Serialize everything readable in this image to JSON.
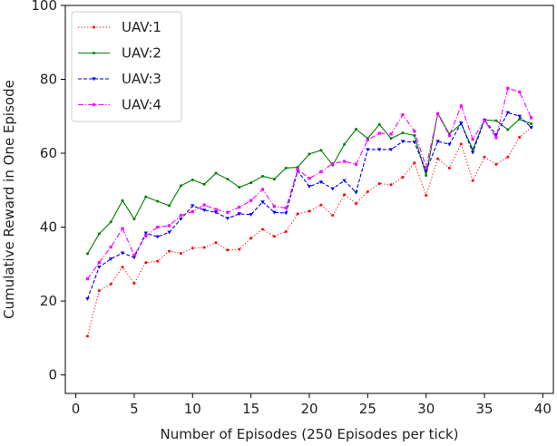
{
  "chart_data": {
    "type": "line",
    "title": "",
    "xlabel": "Number of Episodes (250 Episodes per tick)",
    "ylabel": "Cumulative Reward in One Episode",
    "xlim": [
      -0.9,
      40.9
    ],
    "ylim": [
      -5,
      100
    ],
    "xticks": [
      0,
      5,
      10,
      15,
      20,
      25,
      30,
      35,
      40
    ],
    "yticks": [
      0,
      20,
      40,
      60,
      80,
      100
    ],
    "grid": false,
    "legend_position": "top-left",
    "x": [
      1,
      2,
      3,
      4,
      5,
      6,
      7,
      8,
      9,
      10,
      11,
      12,
      13,
      14,
      15,
      16,
      17,
      18,
      19,
      20,
      21,
      22,
      23,
      24,
      25,
      26,
      27,
      28,
      29,
      30,
      31,
      32,
      33,
      34,
      35,
      36,
      37,
      38,
      39
    ],
    "series": [
      {
        "name": "UAV:1",
        "color": "#ff0000",
        "dash": "dotted",
        "marker": "dot",
        "values": [
          10.5,
          22.8,
          24.6,
          29.2,
          24.8,
          30.4,
          30.8,
          33.5,
          32.9,
          34.3,
          34.5,
          35.8,
          33.8,
          34.0,
          37.0,
          39.4,
          37.5,
          38.8,
          43.6,
          44.3,
          46.0,
          43.2,
          48.8,
          46.4,
          49.6,
          51.8,
          51.5,
          53.5,
          57.4,
          48.6,
          58.5,
          56.0,
          62.5,
          52.6,
          59.0,
          57.0,
          59.0,
          64.3,
          67.0
        ]
      },
      {
        "name": "UAV:2",
        "color": "#007f00",
        "dash": "solid",
        "marker": "dot",
        "values": [
          32.8,
          38.2,
          41.4,
          47.2,
          42.2,
          48.2,
          47.0,
          45.8,
          51.2,
          52.8,
          51.6,
          54.6,
          53.0,
          50.8,
          52.0,
          53.8,
          53.0,
          56.0,
          56.2,
          59.8,
          60.8,
          56.8,
          62.4,
          66.5,
          64.0,
          67.8,
          64.0,
          65.5,
          64.8,
          54.0,
          70.8,
          65.2,
          68.0,
          61.0,
          69.0,
          68.8,
          66.4,
          69.2,
          68.0
        ]
      },
      {
        "name": "UAV:3",
        "color": "#0000ff",
        "dash": "dashed",
        "marker": "tri",
        "values": [
          20.6,
          29.2,
          31.4,
          33.0,
          31.8,
          38.4,
          37.4,
          38.6,
          42.2,
          45.8,
          44.6,
          44.0,
          42.4,
          43.6,
          43.4,
          46.8,
          44.0,
          43.8,
          55.2,
          51.0,
          52.2,
          50.4,
          52.6,
          49.4,
          61.0,
          61.0,
          61.0,
          63.2,
          63.0,
          55.2,
          63.2,
          62.4,
          68.2,
          60.2,
          69.0,
          65.0,
          71.0,
          70.0,
          67.0
        ]
      },
      {
        "name": "UAV:4",
        "color": "#ff00ff",
        "dash": "dashdot",
        "marker": "square",
        "values": [
          26.0,
          30.4,
          34.6,
          39.6,
          32.4,
          37.6,
          40.0,
          40.4,
          43.2,
          44.2,
          46.0,
          44.8,
          44.0,
          45.4,
          47.2,
          50.2,
          45.6,
          45.2,
          55.6,
          53.2,
          55.0,
          57.2,
          57.8,
          57.0,
          63.6,
          65.4,
          65.2,
          70.4,
          66.0,
          56.2,
          70.6,
          64.8,
          72.8,
          63.8,
          68.8,
          64.2,
          77.6,
          76.6,
          69.6
        ]
      }
    ]
  }
}
